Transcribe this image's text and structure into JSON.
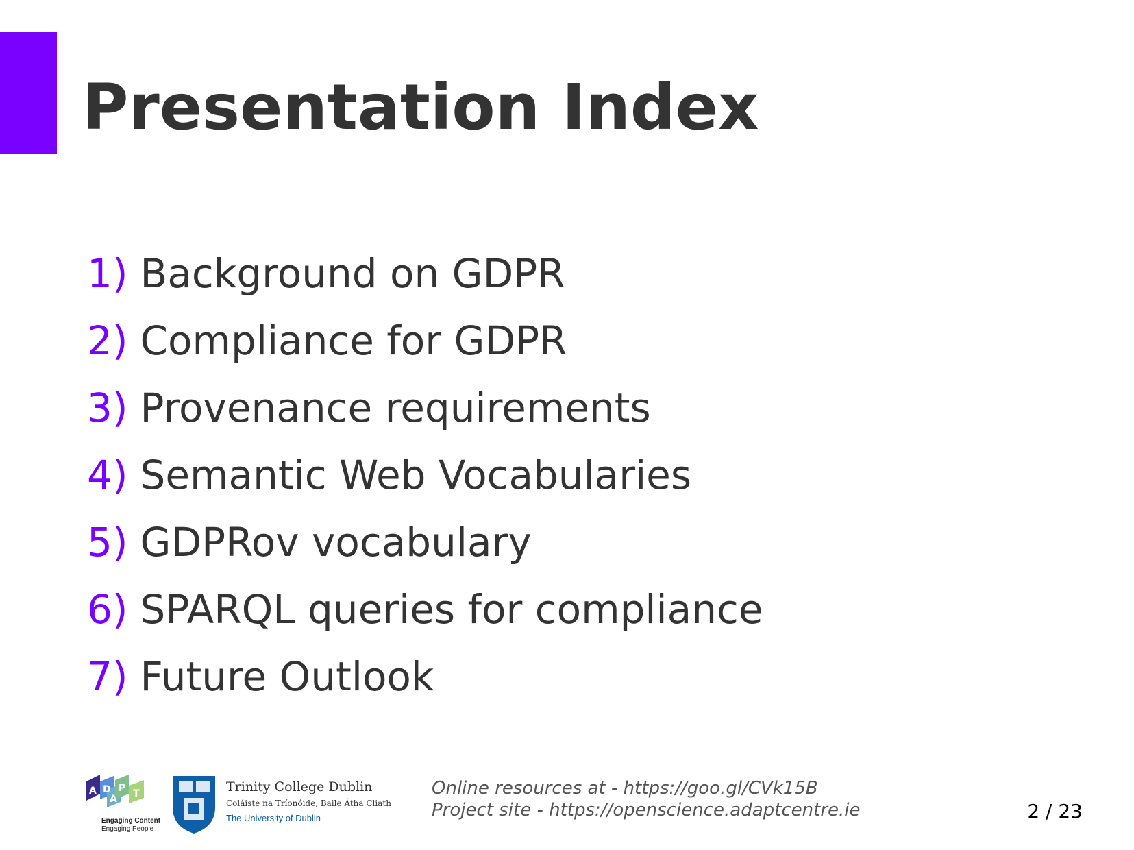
{
  "slide": {
    "title": "Presentation Index",
    "accent_color": "#7a00ff",
    "items": [
      {
        "num": "1)",
        "label": "Background on GDPR"
      },
      {
        "num": "2)",
        "label": "Compliance for GDPR"
      },
      {
        "num": "3)",
        "label": "Provenance requirements"
      },
      {
        "num": "4)",
        "label": "Semantic Web Vocabularies"
      },
      {
        "num": "5)",
        "label": "GDPRov vocabulary"
      },
      {
        "num": "6)",
        "label": "SPARQL queries for compliance"
      },
      {
        "num": "7)",
        "label": "Future Outlook"
      }
    ]
  },
  "footer": {
    "adapt_logo": {
      "letters": [
        "A",
        "D",
        "A",
        "P",
        "T"
      ],
      "tagline_1": "Engaging Content",
      "tagline_2": "Engaging People"
    },
    "tcd_logo": {
      "name": "Trinity College Dublin",
      "irish_name": "Coláiste na Tríonóide, Baile Átha Cliath",
      "subtitle": "The University of Dublin"
    },
    "resources_line_1": "Online resources at - https://goo.gl/CVk15B",
    "resources_line_2": "Project site - https://openscience.adaptcentre.ie",
    "page_number": "2 / 23"
  }
}
